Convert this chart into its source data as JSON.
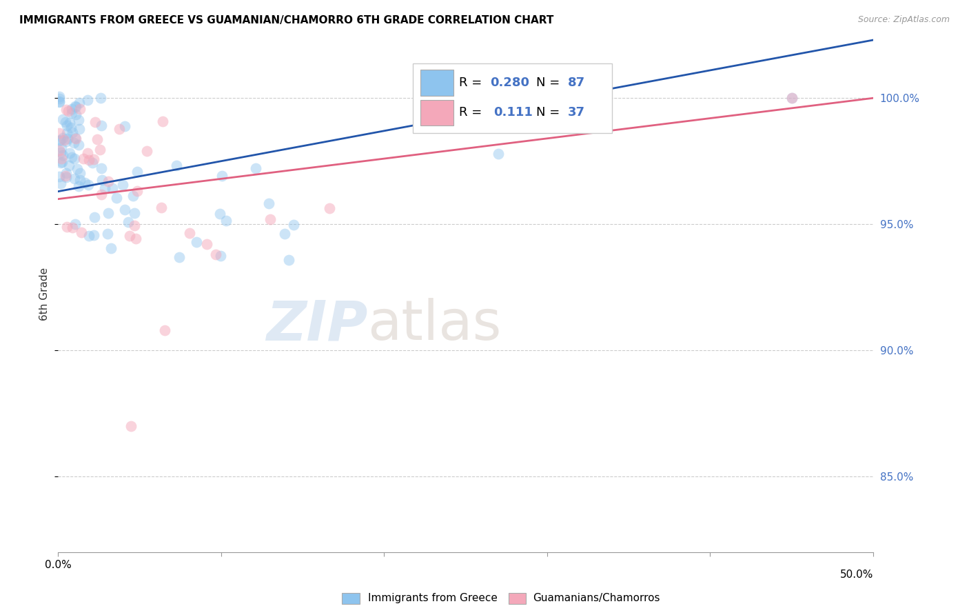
{
  "title": "IMMIGRANTS FROM GREECE VS GUAMANIAN/CHAMORRO 6TH GRADE CORRELATION CHART",
  "source": "Source: ZipAtlas.com",
  "ylabel": "6th Grade",
  "ytick_labels": [
    "85.0%",
    "90.0%",
    "95.0%",
    "100.0%"
  ],
  "ytick_values": [
    0.85,
    0.9,
    0.95,
    1.0
  ],
  "xlim": [
    0.0,
    0.5
  ],
  "ylim": [
    0.82,
    1.025
  ],
  "blue_R": 0.28,
  "blue_N": 87,
  "pink_R": 0.111,
  "pink_N": 37,
  "blue_color": "#8EC4EE",
  "pink_color": "#F4A8BA",
  "blue_line_color": "#2255AA",
  "pink_line_color": "#E06080",
  "legend_label_blue": "Immigrants from Greece",
  "legend_label_pink": "Guamanians/Chamorros",
  "watermark_zip": "ZIP",
  "watermark_atlas": "atlas"
}
